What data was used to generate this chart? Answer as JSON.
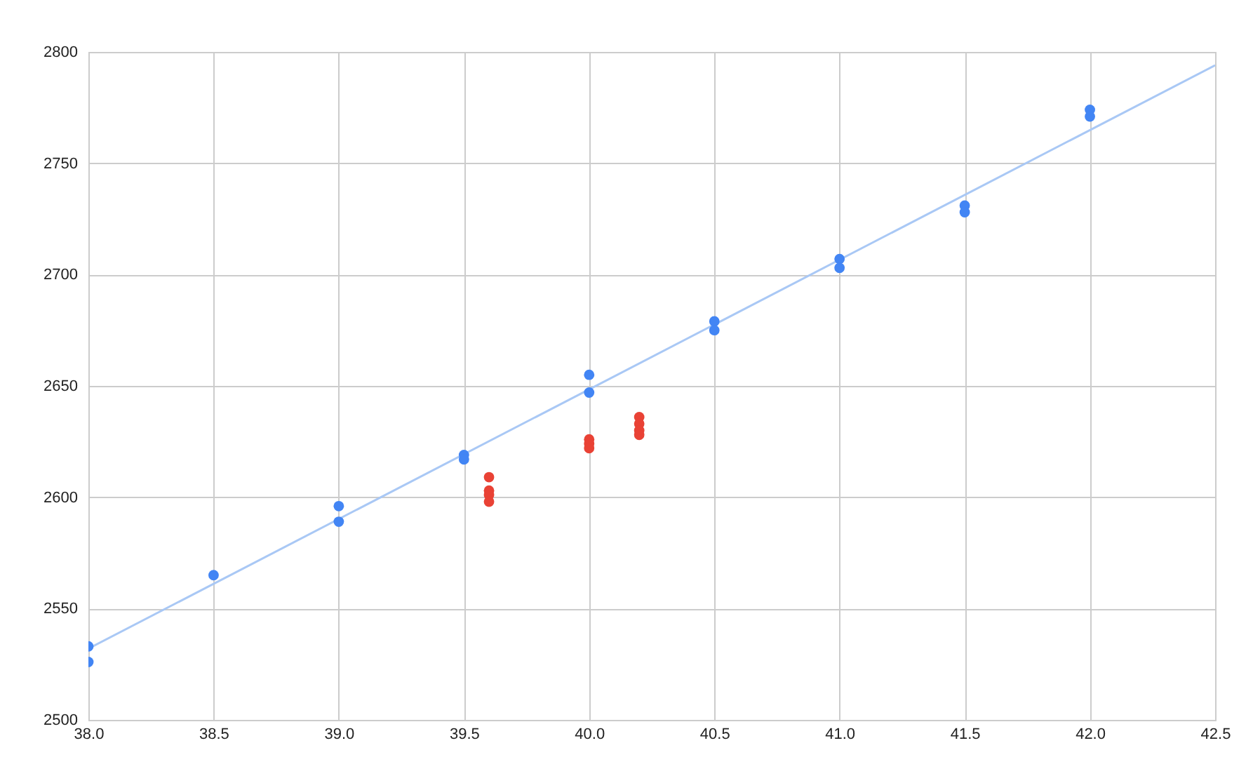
{
  "chart_data": {
    "type": "scatter",
    "marker": "circle",
    "grid": true,
    "xlim": [
      38,
      42.5
    ],
    "ylim": [
      2500,
      2800
    ],
    "xticks": [
      {
        "value": 38,
        "label": "38.0"
      },
      38.5,
      {
        "value": 39,
        "label": "39.0"
      },
      39.5,
      {
        "value": 40,
        "label": "40.0"
      },
      40.5,
      {
        "value": 41,
        "label": "41.0"
      },
      41.5,
      {
        "value": 42,
        "label": "42.0"
      },
      42.5
    ],
    "yticks": [
      2500,
      2550,
      2600,
      2650,
      2700,
      2750,
      2800
    ],
    "series": [
      {
        "type": "line",
        "marker": "none",
        "color": "#a9c8f5",
        "x": [
          38,
          42.5
        ],
        "values": [
          2532,
          2794
        ]
      },
      {
        "color": "#4285f4",
        "x": [
          38,
          38,
          38.5,
          39,
          39,
          39.5,
          39.5,
          40,
          40,
          40.5,
          40.5,
          41,
          41,
          41.5,
          41.5,
          42,
          42
        ],
        "values": [
          2533,
          2526,
          2565,
          2596,
          2589,
          2619,
          2617,
          2655,
          2647,
          2679,
          2675,
          2707,
          2703,
          2731,
          2728,
          2774,
          2771
        ]
      },
      {
        "color": "#e94235",
        "x": [
          39.6,
          39.6,
          39.6,
          39.6,
          40,
          40,
          40,
          40.2,
          40.2,
          40.2,
          40.2
        ],
        "values": [
          2609,
          2603,
          2601,
          2598,
          2626,
          2624,
          2622,
          2636,
          2633,
          2630,
          2628
        ]
      }
    ]
  }
}
